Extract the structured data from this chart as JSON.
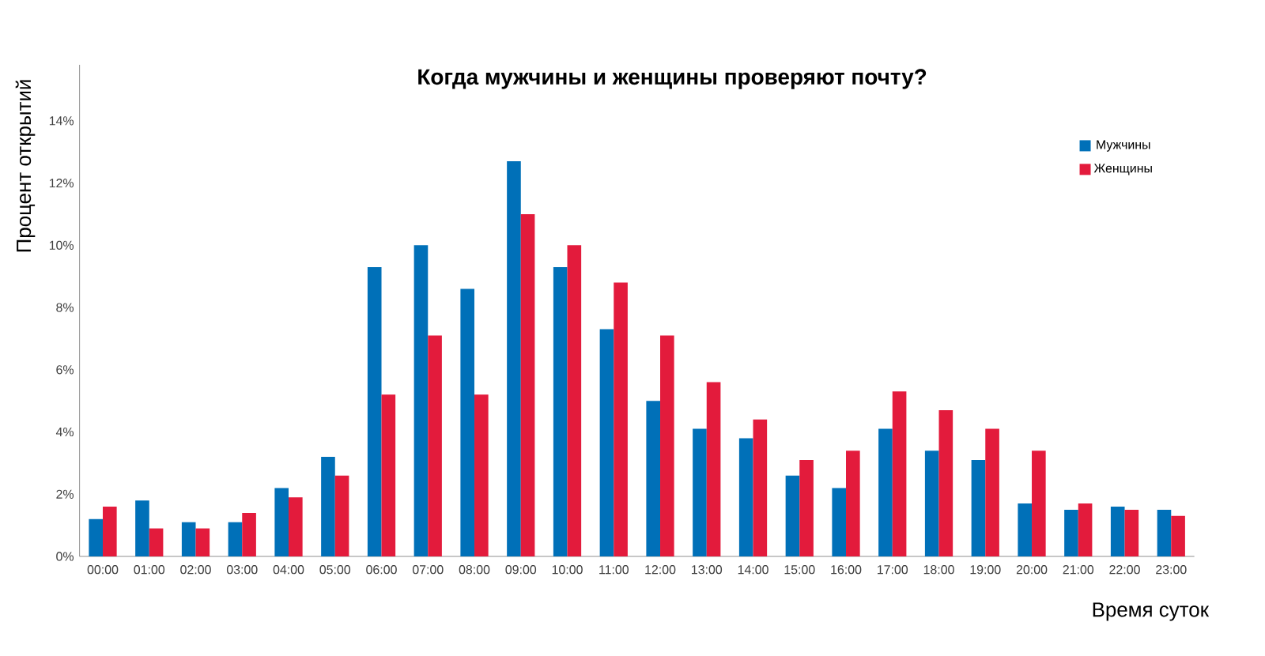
{
  "chart_data": {
    "type": "bar",
    "title": "Когда мужчины и женщины проверяют почту?",
    "xlabel": "Время суток",
    "ylabel": "Процент открытий",
    "categories": [
      "00:00",
      "01:00",
      "02:00",
      "03:00",
      "04:00",
      "05:00",
      "06:00",
      "07:00",
      "08:00",
      "09:00",
      "10:00",
      "11:00",
      "12:00",
      "13:00",
      "14:00",
      "15:00",
      "16:00",
      "17:00",
      "18:00",
      "19:00",
      "20:00",
      "21:00",
      "22:00",
      "23:00"
    ],
    "series": [
      {
        "name": "Мужчины",
        "color": "#0070b8",
        "values": [
          1.2,
          1.8,
          1.1,
          1.1,
          2.2,
          3.2,
          9.3,
          10.0,
          8.6,
          12.7,
          9.3,
          7.3,
          5.0,
          4.1,
          3.8,
          2.6,
          2.2,
          4.1,
          3.4,
          3.1,
          1.7,
          1.5,
          1.6,
          1.5
        ]
      },
      {
        "name": "Женщины",
        "color": "#e31b3c",
        "values": [
          1.6,
          0.9,
          0.9,
          1.4,
          1.9,
          2.6,
          5.2,
          7.1,
          5.2,
          11.0,
          10.0,
          8.8,
          7.1,
          5.6,
          4.4,
          3.1,
          3.4,
          5.3,
          4.7,
          4.1,
          3.4,
          1.7,
          1.5,
          1.3
        ]
      }
    ],
    "ylim": [
      0,
      15.8
    ],
    "yticks": [
      {
        "value": 0,
        "label": "0%"
      },
      {
        "value": 2,
        "label": "2%"
      },
      {
        "value": 4,
        "label": "4%"
      },
      {
        "value": 6,
        "label": "6%"
      },
      {
        "value": 8,
        "label": "8%"
      },
      {
        "value": 10,
        "label": "10%"
      },
      {
        "value": 12,
        "label": "12%"
      },
      {
        "value": 14,
        "label": "14%"
      }
    ],
    "legend": "top right",
    "grid": false
  }
}
